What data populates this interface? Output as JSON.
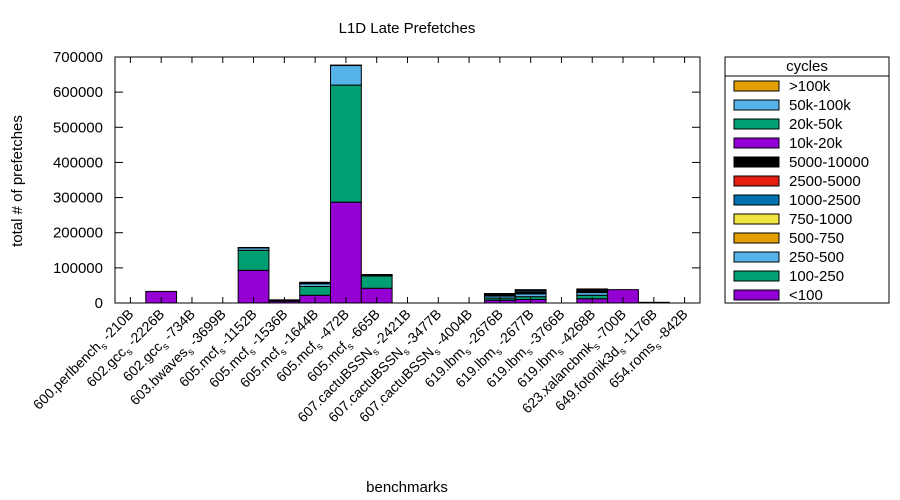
{
  "chart_data": {
    "type": "bar",
    "stacked": true,
    "title": "L1D Late Prefetches",
    "xlabel": "benchmarks",
    "ylabel": "total # of prefetches",
    "ylim": [
      0,
      700000
    ],
    "yticks": [
      0,
      100000,
      200000,
      300000,
      400000,
      500000,
      600000,
      700000
    ],
    "ytick_labels": [
      "0",
      "100000",
      "200000",
      "300000",
      "400000",
      "500000",
      "600000",
      "700000"
    ],
    "grid": false,
    "legend_title": "cycles",
    "legend_position": "right",
    "categories": [
      {
        "pre": "600.perlbench",
        "sub": "s",
        "post": "-210B"
      },
      {
        "pre": "602.gcc",
        "sub": "s",
        "post": "-2226B"
      },
      {
        "pre": "602.gcc",
        "sub": "s",
        "post": "-734B"
      },
      {
        "pre": "603.bwaves",
        "sub": "s",
        "post": "-3699B"
      },
      {
        "pre": "605.mcf",
        "sub": "s",
        "post": "-1152B"
      },
      {
        "pre": "605.mcf",
        "sub": "s",
        "post": "-1536B"
      },
      {
        "pre": "605.mcf",
        "sub": "s",
        "post": "-1644B"
      },
      {
        "pre": "605.mcf",
        "sub": "s",
        "post": "-472B"
      },
      {
        "pre": "605.mcf",
        "sub": "s",
        "post": "-665B"
      },
      {
        "pre": "607.cactuBSSN",
        "sub": "s",
        "post": "-2421B"
      },
      {
        "pre": "607.cactuBSSN",
        "sub": "s",
        "post": "-3477B"
      },
      {
        "pre": "607.cactuBSSN",
        "sub": "s",
        "post": "-4004B"
      },
      {
        "pre": "619.lbm",
        "sub": "s",
        "post": "-2676B"
      },
      {
        "pre": "619.lbm",
        "sub": "s",
        "post": "-2677B"
      },
      {
        "pre": "619.lbm",
        "sub": "s",
        "post": "-3766B"
      },
      {
        "pre": "619.lbm",
        "sub": "s",
        "post": "-4268B"
      },
      {
        "pre": "623.xalancbmk",
        "sub": "s",
        "post": "-700B"
      },
      {
        "pre": "649.fotonik3d",
        "sub": "s",
        "post": "-1176B"
      },
      {
        "pre": "654.roms",
        "sub": "s",
        "post": "-842B"
      }
    ],
    "series": [
      {
        "name": "<100",
        "color": "#9400d3",
        "values": [
          0,
          33000,
          0,
          0,
          93000,
          5000,
          22000,
          287000,
          42000,
          0,
          0,
          0,
          8000,
          10000,
          0,
          12000,
          38000,
          2000,
          0
        ]
      },
      {
        "name": "100-250",
        "color": "#009e73",
        "values": [
          0,
          0,
          0,
          0,
          57000,
          2000,
          25000,
          333000,
          35000,
          0,
          0,
          0,
          6000,
          8000,
          0,
          10000,
          0,
          0,
          0
        ]
      },
      {
        "name": "250-500",
        "color": "#56b4e9",
        "values": [
          0,
          0,
          0,
          0,
          7000,
          1000,
          8000,
          56000,
          3000,
          0,
          0,
          0,
          6000,
          8000,
          0,
          8000,
          0,
          0,
          0
        ]
      },
      {
        "name": "500-750",
        "color": "#e69f00",
        "values": [
          0,
          0,
          0,
          0,
          1000,
          0,
          1000,
          1000,
          1000,
          0,
          0,
          0,
          1000,
          2000,
          0,
          1000,
          0,
          0,
          0
        ]
      },
      {
        "name": "750-1000",
        "color": "#f0e442",
        "values": [
          0,
          0,
          0,
          0,
          0,
          0,
          1000,
          0,
          0,
          0,
          0,
          0,
          1000,
          2000,
          0,
          2000,
          0,
          0,
          0
        ]
      },
      {
        "name": "1000-2500",
        "color": "#0072b2",
        "values": [
          0,
          0,
          0,
          0,
          0,
          0,
          2000,
          0,
          0,
          0,
          0,
          0,
          3000,
          4000,
          0,
          3000,
          0,
          0,
          0
        ]
      },
      {
        "name": "2500-5000",
        "color": "#e51e10",
        "values": [
          0,
          0,
          0,
          0,
          0,
          0,
          0,
          0,
          0,
          0,
          0,
          0,
          0,
          0,
          0,
          0,
          0,
          0,
          0
        ]
      },
      {
        "name": "5000-10000",
        "color": "#000000",
        "values": [
          0,
          0,
          0,
          0,
          0,
          1000,
          0,
          0,
          0,
          0,
          0,
          0,
          2000,
          4000,
          0,
          4000,
          0,
          0,
          0
        ]
      },
      {
        "name": "10k-20k",
        "color": "#9400d3",
        "values": [
          0,
          0,
          0,
          0,
          0,
          0,
          0,
          0,
          0,
          0,
          0,
          0,
          0,
          0,
          0,
          0,
          0,
          0,
          0
        ]
      },
      {
        "name": "20k-50k",
        "color": "#009e73",
        "values": [
          0,
          0,
          0,
          0,
          0,
          0,
          0,
          0,
          0,
          0,
          0,
          0,
          0,
          0,
          0,
          0,
          0,
          0,
          0
        ]
      },
      {
        "name": "50k-100k",
        "color": "#56b4e9",
        "values": [
          0,
          0,
          0,
          0,
          0,
          0,
          0,
          0,
          0,
          0,
          0,
          0,
          0,
          0,
          0,
          0,
          0,
          0,
          0
        ]
      },
      {
        "name": ">100k",
        "color": "#e69f00",
        "values": [
          0,
          0,
          0,
          0,
          0,
          0,
          0,
          0,
          0,
          0,
          0,
          0,
          0,
          0,
          0,
          0,
          0,
          0,
          0
        ]
      }
    ]
  }
}
